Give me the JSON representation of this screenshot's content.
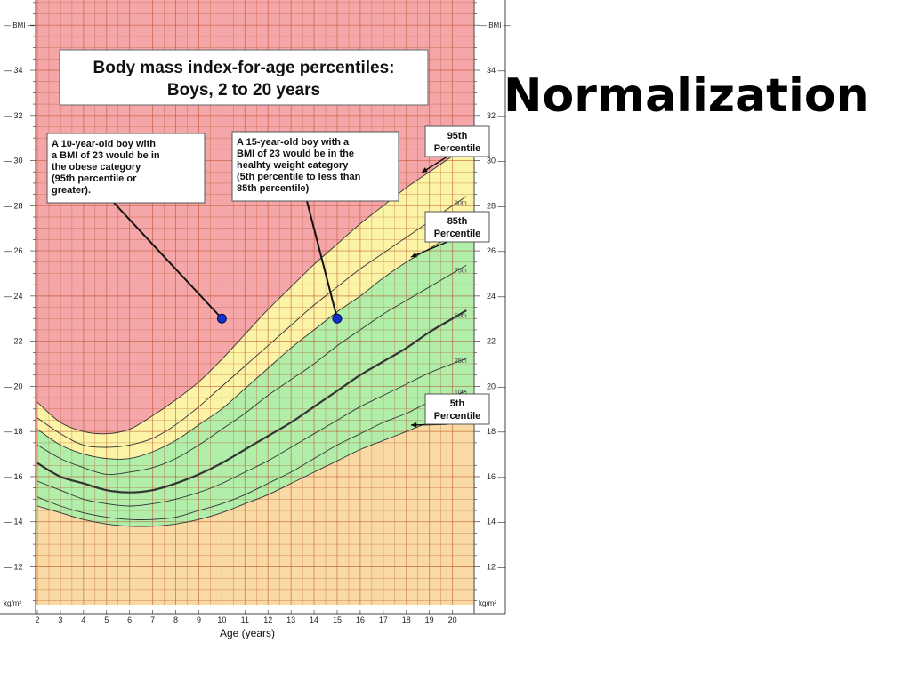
{
  "slide": {
    "title": "Normalization"
  },
  "chart_data": {
    "type": "line",
    "title": [
      "Body mass index-for-age percentiles:",
      "Boys, 2 to 20 years"
    ],
    "xlabel": "Age (years)",
    "ylabel": "BMI",
    "unit_label": "kg/m²",
    "xlim": [
      2,
      20.6
    ],
    "ylim": [
      11,
      37
    ],
    "x_ticks": [
      2,
      3,
      4,
      5,
      6,
      7,
      8,
      9,
      10,
      11,
      12,
      13,
      14,
      15,
      16,
      17,
      18,
      19,
      20
    ],
    "y_ticks": [
      12,
      14,
      16,
      18,
      20,
      22,
      24,
      26,
      28,
      30,
      32,
      34
    ],
    "grid": true,
    "colors": {
      "obese": "#f4a6a9",
      "overweight": "#fbf4a6",
      "healthy": "#b0eeaa",
      "underweight": "#f9d9a4",
      "grid": "#b8461c",
      "point": "#1230c8"
    },
    "series": [
      {
        "name": "5th",
        "label": "",
        "x": [
          2,
          3,
          4,
          5,
          6,
          7,
          8,
          9,
          10,
          11,
          12,
          13,
          14,
          15,
          16,
          17,
          18,
          19,
          20
        ],
        "y": [
          14.7,
          14.4,
          14.1,
          13.9,
          13.8,
          13.8,
          13.9,
          14.1,
          14.4,
          14.8,
          15.2,
          15.7,
          16.2,
          16.7,
          17.2,
          17.6,
          18.0,
          18.4,
          18.7
        ]
      },
      {
        "name": "10th",
        "label": "10th",
        "x": [
          2,
          3,
          4,
          5,
          6,
          7,
          8,
          9,
          10,
          11,
          12,
          13,
          14,
          15,
          16,
          17,
          18,
          19,
          20
        ],
        "y": [
          15.1,
          14.7,
          14.4,
          14.2,
          14.1,
          14.1,
          14.2,
          14.5,
          14.8,
          15.2,
          15.7,
          16.2,
          16.8,
          17.4,
          17.9,
          18.4,
          18.8,
          19.3,
          19.6
        ]
      },
      {
        "name": "25th",
        "label": "25th",
        "x": [
          2,
          3,
          4,
          5,
          6,
          7,
          8,
          9,
          10,
          11,
          12,
          13,
          14,
          15,
          16,
          17,
          18,
          19,
          20
        ],
        "y": [
          15.8,
          15.4,
          15.0,
          14.8,
          14.7,
          14.8,
          15.0,
          15.3,
          15.7,
          16.2,
          16.7,
          17.3,
          17.9,
          18.5,
          19.1,
          19.6,
          20.1,
          20.6,
          21.0
        ]
      },
      {
        "name": "50th",
        "label": "50th",
        "x": [
          2,
          3,
          4,
          5,
          6,
          7,
          8,
          9,
          10,
          11,
          12,
          13,
          14,
          15,
          16,
          17,
          18,
          19,
          20
        ],
        "y": [
          16.6,
          16.0,
          15.7,
          15.4,
          15.3,
          15.4,
          15.7,
          16.1,
          16.6,
          17.2,
          17.8,
          18.4,
          19.1,
          19.8,
          20.5,
          21.1,
          21.7,
          22.4,
          23.0
        ]
      },
      {
        "name": "75th",
        "label": "75th",
        "x": [
          2,
          3,
          4,
          5,
          6,
          7,
          8,
          9,
          10,
          11,
          12,
          13,
          14,
          15,
          16,
          17,
          18,
          19,
          20
        ],
        "y": [
          17.4,
          16.8,
          16.4,
          16.1,
          16.2,
          16.4,
          16.8,
          17.4,
          18.1,
          18.8,
          19.6,
          20.3,
          21.0,
          21.8,
          22.5,
          23.2,
          23.8,
          24.4,
          25.0
        ]
      },
      {
        "name": "85th",
        "label": "",
        "x": [
          2,
          3,
          4,
          5,
          6,
          7,
          8,
          9,
          10,
          11,
          12,
          13,
          14,
          15,
          16,
          17,
          18,
          19,
          20
        ],
        "y": [
          18.1,
          17.4,
          17.0,
          16.8,
          16.8,
          17.1,
          17.6,
          18.3,
          19.0,
          19.9,
          20.8,
          21.7,
          22.5,
          23.3,
          24.0,
          24.8,
          25.5,
          26.1,
          26.7
        ]
      },
      {
        "name": "90th",
        "label": "90th",
        "x": [
          2,
          3,
          4,
          5,
          6,
          7,
          8,
          9,
          10,
          11,
          12,
          13,
          14,
          15,
          16,
          17,
          18,
          19,
          20
        ],
        "y": [
          18.6,
          17.9,
          17.4,
          17.3,
          17.4,
          17.7,
          18.3,
          19.1,
          20.0,
          20.9,
          21.8,
          22.7,
          23.6,
          24.4,
          25.2,
          25.9,
          26.6,
          27.3,
          28.0
        ]
      },
      {
        "name": "95th",
        "label": "",
        "x": [
          2,
          3,
          4,
          5,
          6,
          7,
          8,
          9,
          10,
          11,
          12,
          13,
          14,
          15,
          16,
          17,
          18,
          19,
          20
        ],
        "y": [
          19.3,
          18.4,
          18.0,
          17.9,
          18.1,
          18.7,
          19.4,
          20.2,
          21.2,
          22.3,
          23.4,
          24.4,
          25.4,
          26.3,
          27.2,
          28.0,
          28.8,
          29.5,
          30.2
        ]
      }
    ],
    "points": [
      {
        "x": 10,
        "y": 23
      },
      {
        "x": 15,
        "y": 23
      }
    ],
    "annotations": [
      {
        "lines": [
          "A 10-year-old boy with",
          "a BMI of 23 would be in",
          "the obese category",
          "(95th percentile or",
          "greater)."
        ]
      },
      {
        "lines": [
          "A 15-year-old boy with a",
          "BMI of 23 would be in the",
          "healhty weight category",
          "(5th percentile to less than",
          "85th percentile)"
        ]
      }
    ],
    "callouts": [
      {
        "lines": [
          "95th",
          "Percentile"
        ]
      },
      {
        "lines": [
          "85th",
          "Percentile"
        ]
      },
      {
        "lines": [
          "5th",
          "Percentile"
        ]
      }
    ]
  }
}
